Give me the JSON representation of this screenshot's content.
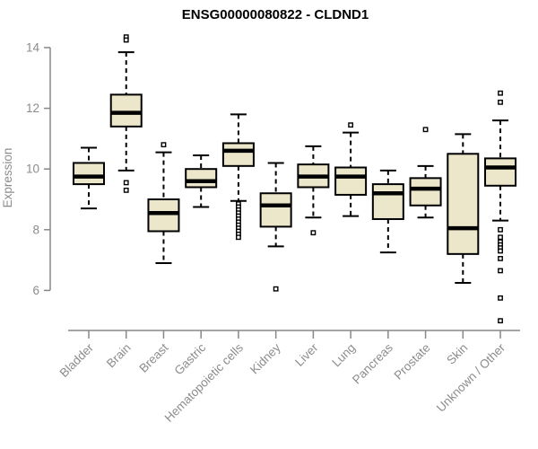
{
  "chart_data": {
    "type": "boxplot",
    "title": "ENSG00000080822 - CLDND1",
    "ylabel": "Expression",
    "xlabel": "",
    "ylim": [
      6,
      14
    ],
    "y_ticks": [
      6,
      8,
      10,
      12,
      14
    ],
    "grid": false,
    "legend": "none",
    "colors": {
      "box_fill": "#ece7ca",
      "box_stroke": "#000000",
      "median": "#000000",
      "outlier_stroke": "#000000",
      "axis": "#878787",
      "tick_text": "#8c8c8c",
      "title_text": "#000000",
      "background": "#ffffff"
    },
    "boxes": [
      {
        "category": "Bladder",
        "low": 8.7,
        "q1": 9.5,
        "median": 9.75,
        "q3": 10.2,
        "high": 10.7,
        "outliers": []
      },
      {
        "category": "Brain",
        "low": 9.95,
        "q1": 11.4,
        "median": 11.85,
        "q3": 12.45,
        "high": 13.85,
        "outliers": [
          14.35,
          14.25,
          9.55,
          9.3
        ]
      },
      {
        "category": "Breast",
        "low": 6.9,
        "q1": 7.95,
        "median": 8.55,
        "q3": 9.0,
        "high": 10.55,
        "outliers": [
          10.8
        ]
      },
      {
        "category": "Gastric",
        "low": 8.75,
        "q1": 9.4,
        "median": 9.6,
        "q3": 10.0,
        "high": 10.45,
        "outliers": []
      },
      {
        "category": "Hematopoietic cells",
        "low": 8.95,
        "q1": 10.1,
        "median": 10.6,
        "q3": 10.85,
        "high": 11.8,
        "outliers": [
          8.85,
          8.75,
          8.65,
          8.55,
          8.45,
          8.35,
          8.25,
          8.15,
          8.05,
          7.95,
          7.85,
          7.75
        ]
      },
      {
        "category": "Kidney",
        "low": 7.45,
        "q1": 8.1,
        "median": 8.8,
        "q3": 9.2,
        "high": 10.2,
        "outliers": [
          6.05
        ]
      },
      {
        "category": "Liver",
        "low": 8.4,
        "q1": 9.4,
        "median": 9.75,
        "q3": 10.15,
        "high": 10.75,
        "outliers": [
          7.9
        ]
      },
      {
        "category": "Lung",
        "low": 8.45,
        "q1": 9.15,
        "median": 9.75,
        "q3": 10.05,
        "high": 11.2,
        "outliers": [
          11.45
        ]
      },
      {
        "category": "Pancreas",
        "low": 7.25,
        "q1": 8.35,
        "median": 9.2,
        "q3": 9.5,
        "high": 9.95,
        "outliers": []
      },
      {
        "category": "Prostate",
        "low": 8.4,
        "q1": 8.8,
        "median": 9.35,
        "q3": 9.7,
        "high": 10.1,
        "outliers": [
          11.3
        ]
      },
      {
        "category": "Skin",
        "low": 6.25,
        "q1": 7.2,
        "median": 8.05,
        "q3": 10.5,
        "high": 11.15,
        "outliers": []
      },
      {
        "category": "Unknown / Other",
        "low": 8.3,
        "q1": 9.45,
        "median": 10.05,
        "q3": 10.35,
        "high": 11.6,
        "outliers": [
          12.5,
          12.2,
          8.0,
          7.75,
          7.6,
          7.5,
          7.4,
          7.3,
          7.05,
          6.65,
          5.75,
          5.0
        ]
      }
    ]
  }
}
